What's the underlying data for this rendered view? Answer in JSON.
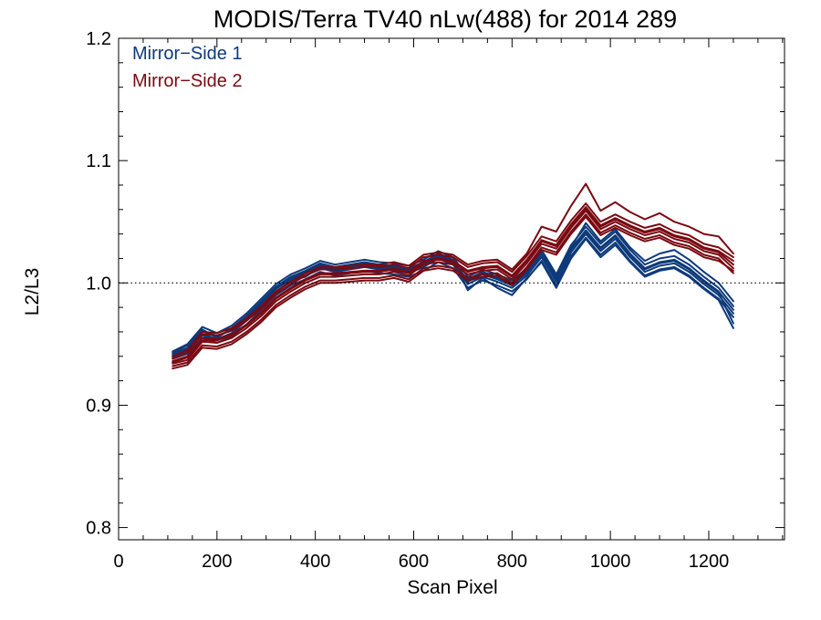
{
  "chart_data": {
    "type": "line",
    "title": "MODIS/Terra TV40 nLw(488) for 2014 289",
    "xlabel": "Scan Pixel",
    "ylabel": "L2/L3",
    "xlim": [
      0,
      1354
    ],
    "ylim": [
      0.79,
      1.2
    ],
    "x_ticks": [
      {
        "value": 0,
        "label": "0"
      },
      {
        "value": 200,
        "label": "200"
      },
      {
        "value": 400,
        "label": "400"
      },
      {
        "value": 600,
        "label": "600"
      },
      {
        "value": 800,
        "label": "800"
      },
      {
        "value": 1000,
        "label": "1000"
      },
      {
        "value": 1200,
        "label": "1200"
      }
    ],
    "y_ticks": [
      {
        "value": 0.8,
        "label": "0.8"
      },
      {
        "value": 0.9,
        "label": "0.9"
      },
      {
        "value": 1.0,
        "label": "1.0"
      },
      {
        "value": 1.1,
        "label": "1.1"
      },
      {
        "value": 1.2,
        "label": "1.2"
      }
    ],
    "x_minor_step": 50,
    "y_minor_step": 0.02,
    "reference_line": {
      "y": 1.0,
      "style": "dotted"
    },
    "legend": {
      "position": "top-left",
      "entries": [
        {
          "label": "Mirror−Side 1",
          "color": "#0d3a7a"
        },
        {
          "label": "Mirror−Side 2",
          "color": "#7a0a12"
        }
      ]
    },
    "x": [
      110,
      140,
      170,
      200,
      230,
      260,
      290,
      320,
      350,
      380,
      410,
      440,
      470,
      500,
      530,
      560,
      590,
      620,
      650,
      680,
      710,
      740,
      770,
      800,
      830,
      860,
      890,
      920,
      950,
      980,
      1010,
      1040,
      1070,
      1100,
      1130,
      1160,
      1190,
      1220,
      1250
    ],
    "series": [
      {
        "group": "Mirror-Side 1",
        "color": "#0d3a7a",
        "curves": [
          [
            0.942,
            0.947,
            0.961,
            0.956,
            0.962,
            0.972,
            0.984,
            0.996,
            1.004,
            1.009,
            1.015,
            1.012,
            1.014,
            1.016,
            1.014,
            1.013,
            1.011,
            1.016,
            1.023,
            1.018,
            1.002,
            1.008,
            1.004,
            0.999,
            1.009,
            1.024,
            1.004,
            1.028,
            1.043,
            1.029,
            1.039,
            1.024,
            1.012,
            1.017,
            1.019,
            1.012,
            1.002,
            0.993,
            0.978
          ],
          [
            0.94,
            0.944,
            0.958,
            0.954,
            0.959,
            0.969,
            0.981,
            0.993,
            1.001,
            1.006,
            1.012,
            1.009,
            1.011,
            1.013,
            1.011,
            1.01,
            1.008,
            1.013,
            1.02,
            1.015,
            0.999,
            1.005,
            1.001,
            0.996,
            1.006,
            1.021,
            1.001,
            1.025,
            1.04,
            1.026,
            1.036,
            1.021,
            1.009,
            1.014,
            1.016,
            1.009,
            0.999,
            0.99,
            0.975
          ],
          [
            0.944,
            0.95,
            0.964,
            0.959,
            0.965,
            0.975,
            0.987,
            0.999,
            1.007,
            1.012,
            1.018,
            1.015,
            1.017,
            1.019,
            1.017,
            1.016,
            1.014,
            1.019,
            1.026,
            1.021,
            1.005,
            1.011,
            1.007,
            1.002,
            1.012,
            1.027,
            1.007,
            1.031,
            1.046,
            1.032,
            1.042,
            1.027,
            1.015,
            1.02,
            1.022,
            1.015,
            1.005,
            0.996,
            0.981
          ],
          [
            0.938,
            0.942,
            0.955,
            0.951,
            0.956,
            0.966,
            0.978,
            0.99,
            0.998,
            1.003,
            1.009,
            1.006,
            1.008,
            1.01,
            1.008,
            1.007,
            1.005,
            1.01,
            1.017,
            1.012,
            0.996,
            1.002,
            0.998,
            0.993,
            1.003,
            1.018,
            0.998,
            1.022,
            1.037,
            1.023,
            1.033,
            1.018,
            1.006,
            1.011,
            1.013,
            1.006,
            0.996,
            0.987,
            0.972
          ],
          [
            0.941,
            0.946,
            0.96,
            0.957,
            0.961,
            0.971,
            0.983,
            0.995,
            1.003,
            1.008,
            1.014,
            1.011,
            1.013,
            1.015,
            1.013,
            1.012,
            1.01,
            1.015,
            1.022,
            1.017,
            1.001,
            1.007,
            1.003,
            0.998,
            1.008,
            1.023,
            1.003,
            1.027,
            1.042,
            1.028,
            1.038,
            1.023,
            1.011,
            1.016,
            1.018,
            1.011,
            1.001,
            0.992,
            0.967
          ],
          [
            0.943,
            0.949,
            0.962,
            0.955,
            0.963,
            0.973,
            0.985,
            0.997,
            1.005,
            1.01,
            1.016,
            1.013,
            1.015,
            1.017,
            1.015,
            1.014,
            1.012,
            1.017,
            1.024,
            1.019,
            0.994,
            1.004,
            0.996,
            0.99,
            1.004,
            1.017,
            0.996,
            1.02,
            1.036,
            1.021,
            1.031,
            1.017,
            1.005,
            1.01,
            1.012,
            1.005,
            0.995,
            0.986,
            0.963
          ],
          [
            0.939,
            0.945,
            0.957,
            0.953,
            0.958,
            0.97,
            0.98,
            0.992,
            1.002,
            1.005,
            1.013,
            1.01,
            1.012,
            1.014,
            1.012,
            1.011,
            1.009,
            1.014,
            1.021,
            1.016,
            1.003,
            1.009,
            1.005,
            1.0,
            1.01,
            1.025,
            1.005,
            1.029,
            1.049,
            1.034,
            1.044,
            1.029,
            1.018,
            1.024,
            1.027,
            1.019,
            1.009,
            1.0,
            0.985
          ]
        ]
      },
      {
        "group": "Mirror-Side 2",
        "color": "#7a0a12",
        "curves": [
          [
            0.936,
            0.94,
            0.955,
            0.954,
            0.958,
            0.966,
            0.976,
            0.988,
            0.996,
            1.003,
            1.008,
            1.008,
            1.009,
            1.01,
            1.01,
            1.012,
            1.009,
            1.018,
            1.02,
            1.018,
            1.01,
            1.013,
            1.014,
            1.006,
            1.019,
            1.035,
            1.031,
            1.048,
            1.062,
            1.047,
            1.053,
            1.047,
            1.042,
            1.045,
            1.039,
            1.036,
            1.029,
            1.026,
            1.018
          ],
          [
            0.934,
            0.937,
            0.952,
            0.951,
            0.955,
            0.963,
            0.973,
            0.985,
            0.993,
            1.0,
            1.005,
            1.005,
            1.006,
            1.007,
            1.007,
            1.009,
            1.006,
            1.015,
            1.017,
            1.015,
            1.007,
            1.01,
            1.011,
            1.003,
            1.016,
            1.032,
            1.028,
            1.045,
            1.059,
            1.044,
            1.05,
            1.044,
            1.039,
            1.042,
            1.036,
            1.033,
            1.026,
            1.023,
            1.012
          ],
          [
            0.938,
            0.943,
            0.958,
            0.957,
            0.961,
            0.969,
            0.979,
            0.991,
            0.999,
            1.006,
            1.011,
            1.011,
            1.012,
            1.013,
            1.013,
            1.015,
            1.012,
            1.021,
            1.023,
            1.021,
            1.013,
            1.016,
            1.017,
            1.009,
            1.022,
            1.038,
            1.034,
            1.051,
            1.065,
            1.05,
            1.056,
            1.05,
            1.045,
            1.048,
            1.042,
            1.039,
            1.032,
            1.029,
            1.021
          ],
          [
            0.932,
            0.935,
            0.949,
            0.948,
            0.952,
            0.96,
            0.97,
            0.982,
            0.99,
            0.997,
            1.002,
            1.002,
            1.003,
            1.004,
            1.004,
            1.006,
            1.003,
            1.012,
            1.014,
            1.012,
            1.004,
            1.007,
            1.008,
            1.0,
            1.013,
            1.029,
            1.025,
            1.042,
            1.056,
            1.041,
            1.047,
            1.041,
            1.036,
            1.039,
            1.033,
            1.03,
            1.023,
            1.02,
            1.008
          ],
          [
            0.94,
            0.945,
            0.96,
            0.959,
            0.963,
            0.971,
            0.981,
            0.993,
            1.001,
            1.008,
            1.013,
            1.013,
            1.014,
            1.015,
            1.015,
            1.017,
            1.014,
            1.023,
            1.025,
            1.023,
            1.015,
            1.018,
            1.019,
            1.011,
            1.024,
            1.046,
            1.042,
            1.063,
            1.081,
            1.059,
            1.066,
            1.058,
            1.052,
            1.057,
            1.05,
            1.046,
            1.04,
            1.038,
            1.024
          ],
          [
            0.935,
            0.939,
            0.953,
            0.953,
            0.957,
            0.965,
            0.975,
            0.987,
            0.995,
            1.002,
            1.007,
            1.007,
            1.008,
            1.009,
            1.009,
            1.011,
            1.008,
            1.017,
            1.019,
            1.017,
            1.009,
            1.012,
            1.013,
            1.005,
            1.018,
            1.034,
            1.03,
            1.047,
            1.061,
            1.046,
            1.052,
            1.046,
            1.041,
            1.044,
            1.038,
            1.035,
            1.028,
            1.025,
            1.015
          ],
          [
            0.93,
            0.933,
            0.947,
            0.946,
            0.95,
            0.958,
            0.968,
            0.98,
            0.988,
            0.995,
            1.0,
            1.0,
            1.001,
            1.002,
            1.002,
            1.004,
            1.001,
            1.01,
            1.012,
            1.01,
            1.002,
            1.005,
            1.006,
            0.998,
            1.011,
            1.027,
            1.023,
            1.04,
            1.054,
            1.039,
            1.045,
            1.039,
            1.034,
            1.037,
            1.031,
            1.028,
            1.021,
            1.018,
            1.01
          ]
        ]
      }
    ]
  }
}
